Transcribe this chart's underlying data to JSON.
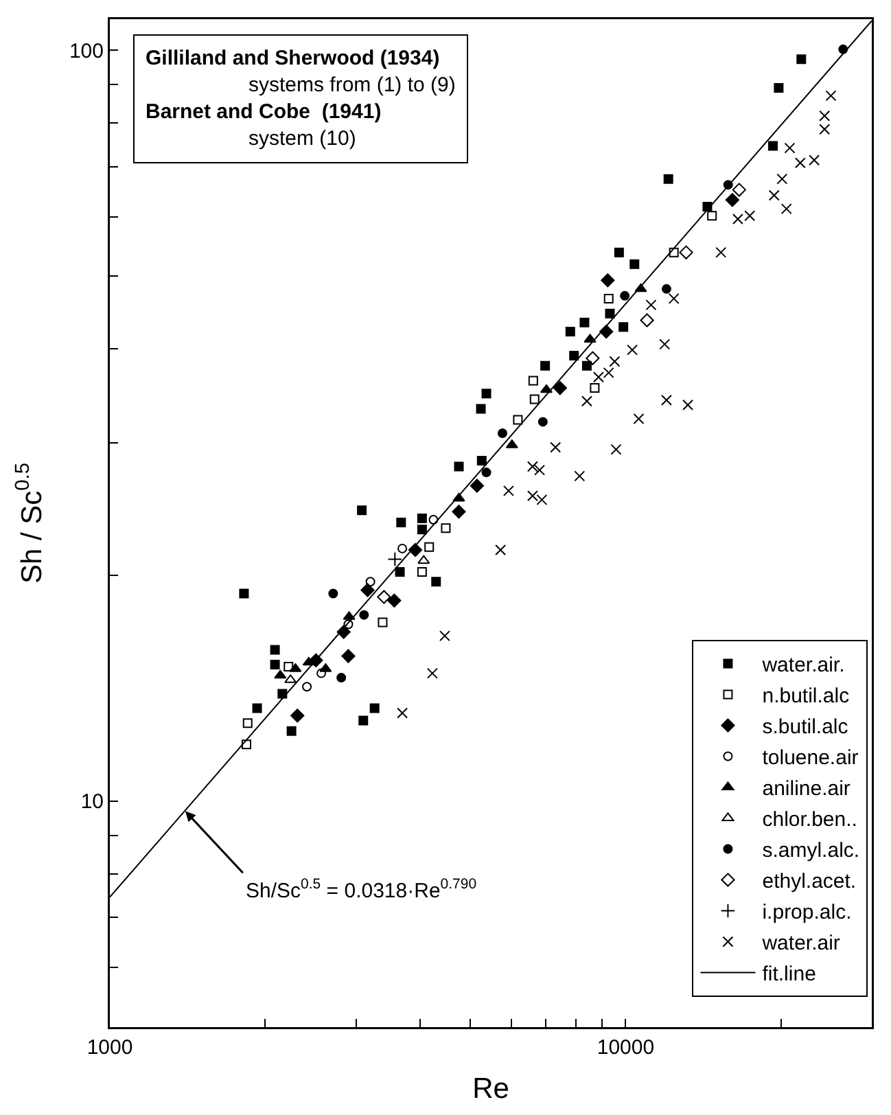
{
  "chart_data": {
    "type": "scatter",
    "xlabel": "Re",
    "ylabel": "Sh / Sc$^{0.5}$",
    "log": "xy",
    "xlim": [
      1000,
      30000
    ],
    "ylim": [
      5,
      110
    ],
    "xticks": [
      1000,
      {
        "value": 2000,
        "label": null
      },
      {
        "value": 3000,
        "label": null
      },
      {
        "value": 4000,
        "label": null
      },
      {
        "value": 5000,
        "label": null
      },
      {
        "value": 6000,
        "label": null
      },
      {
        "value": 7000,
        "label": null
      },
      {
        "value": 8000,
        "label": null
      },
      {
        "value": 9000,
        "label": null
      },
      10000,
      {
        "value": 20000,
        "label": null
      }
    ],
    "yticks": [
      {
        "value": 6,
        "label": null
      },
      {
        "value": 7,
        "label": null
      },
      {
        "value": 8,
        "label": null
      },
      {
        "value": 9,
        "label": null
      },
      10,
      {
        "value": 20,
        "label": null
      },
      {
        "value": 30,
        "label": null
      },
      {
        "value": 40,
        "label": null
      },
      {
        "value": 50,
        "label": null
      },
      {
        "value": 60,
        "label": null
      },
      {
        "value": 70,
        "label": null
      },
      {
        "value": 80,
        "label": null
      },
      {
        "value": 90,
        "label": null
      },
      100
    ],
    "grid": false,
    "legend": "bottom right",
    "annotations": [
      "Gilliland and Sherwood (1934)",
      "systems from (1) to (9)",
      "Barnet and Cobe  (1941)",
      "system (10)",
      {
        "text": "Sh/Sc$^{0.5}$ = 0.0318·Re$^{0.790}$",
        "x": 1400,
        "y": 9.7
      }
    ],
    "series": [
      {
        "name": "water.air.",
        "color": "#000000",
        "marker": "square",
        "x": [
          21900,
          19800,
          19300,
          12100,
          14400,
          9710,
          10400,
          9320,
          9900,
          7810,
          8320,
          7940,
          8410,
          6980,
          5370,
          5240,
          4750,
          5260,
          3080,
          3670,
          4030,
          4030,
          3650,
          4290,
          1820,
          2090,
          2090,
          2160,
          1930,
          2250,
          3260,
          3100
        ],
        "values": [
          97.3,
          89.1,
          74.6,
          67.4,
          61.9,
          53.8,
          51.9,
          44.6,
          42.8,
          42.2,
          43.4,
          39.2,
          38.0,
          38.0,
          34.9,
          33.3,
          27.9,
          28.4,
          24.4,
          23.5,
          23.8,
          23.0,
          20.2,
          19.6,
          18.9,
          15.9,
          15.2,
          13.9,
          13.3,
          12.4,
          13.3,
          12.8
        ]
      },
      {
        "name": "n.butil.alc",
        "color": "#000000",
        "marker": "square-open",
        "x": [
          14700,
          12400,
          9270,
          6620,
          6660,
          8710,
          6180,
          4480,
          4160,
          4030,
          3380,
          2220,
          1850,
          1840
        ],
        "values": [
          60.2,
          53.8,
          46.7,
          36.3,
          34.3,
          35.5,
          32.2,
          23.1,
          21.8,
          20.2,
          17.3,
          15.1,
          12.7,
          11.9
        ]
      },
      {
        "name": "s.butil.alc",
        "color": "#000000",
        "marker": "diamond",
        "x": [
          16100,
          9230,
          9170,
          7460,
          5150,
          4750,
          3910,
          3160,
          3560,
          2840,
          2900,
          2510,
          2310
        ],
        "values": [
          63.2,
          49.4,
          42.2,
          35.5,
          26.3,
          24.3,
          21.6,
          19.1,
          18.5,
          16.8,
          15.6,
          15.4,
          13.0
        ]
      },
      {
        "name": "toluene.air",
        "color": "#000000",
        "marker": "circle-open",
        "x": [
          4240,
          3690,
          3200,
          2900,
          2410,
          2570
        ],
        "values": [
          23.7,
          21.7,
          19.6,
          17.2,
          14.2,
          14.8
        ]
      },
      {
        "name": "aniline.air",
        "color": "#000000",
        "marker": "triangle",
        "x": [
          10700,
          8530,
          7020,
          6020,
          4750,
          2910,
          2290,
          2140,
          2430,
          2620
        ],
        "values": [
          48.1,
          41.2,
          35.3,
          29.8,
          25.3,
          17.6,
          15.0,
          14.7,
          15.3,
          15.0
        ]
      },
      {
        "name": "chlor.ben..",
        "color": "#000000",
        "marker": "triangle-open",
        "x": [
          4060,
          2240
        ],
        "values": [
          20.9,
          14.5
        ]
      },
      {
        "name": "s.amyl.alc.",
        "color": "#000000",
        "marker": "circle",
        "x": [
          26400,
          15800,
          9960,
          12000,
          6910,
          5770,
          5370,
          2710,
          3110,
          2810
        ],
        "values": [
          100.3,
          66.2,
          47.1,
          48.1,
          32.0,
          30.9,
          27.4,
          18.9,
          17.7,
          14.6
        ]
      },
      {
        "name": "ethyl.acet.",
        "color": "#000000",
        "marker": "diamond-open",
        "x": [
          16600,
          13100,
          11000,
          8630,
          3400
        ],
        "values": [
          65.2,
          53.8,
          43.7,
          38.9,
          18.7
        ]
      },
      {
        "name": "i.prop.alc.",
        "color": "#000000",
        "marker": "cross",
        "x": [
          3570
        ],
        "values": [
          21.0
        ]
      },
      {
        "name": "water.air",
        "color": "#000000",
        "marker": "x",
        "x": [
          25000,
          24300,
          24300,
          20800,
          21800,
          23200,
          16500,
          17400,
          19400,
          20100,
          20500,
          15300,
          12400,
          11200,
          10300,
          11900,
          9520,
          9270,
          8860,
          8410,
          12000,
          13200,
          10600,
          7310,
          6600,
          6810,
          5930,
          6600,
          6880,
          4460,
          4220,
          3690,
          9580,
          8140,
          5720
        ],
        "values": [
          87.0,
          81.8,
          78.5,
          74.1,
          70.8,
          71.4,
          59.6,
          60.2,
          64.1,
          67.4,
          61.5,
          53.8,
          46.7,
          45.8,
          39.9,
          40.6,
          38.5,
          37.2,
          36.7,
          34.1,
          34.2,
          33.7,
          32.3,
          29.6,
          27.9,
          27.6,
          25.9,
          25.5,
          25.2,
          16.6,
          14.8,
          13.1,
          29.4,
          27.1,
          21.6
        ]
      },
      {
        "name": "fit.line",
        "type": "line",
        "color": "#000000",
        "marker": "none",
        "line_style": "solid",
        "x": [
          1000,
          30000
        ],
        "values": [
          7.45,
          109.5
        ]
      }
    ]
  }
}
